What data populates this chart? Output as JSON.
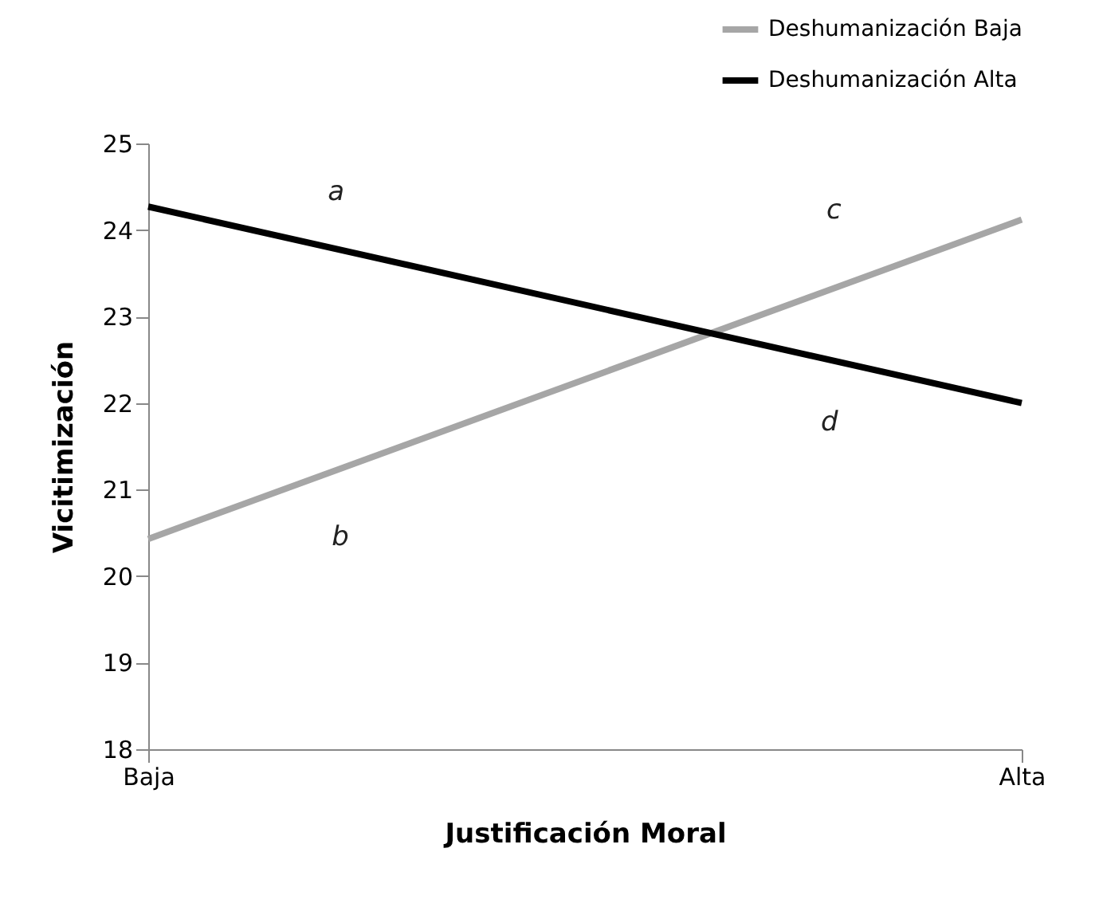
{
  "chart_data": {
    "type": "line",
    "xlabel": "Justificación Moral",
    "ylabel": "Vicitimización",
    "categories": [
      "Baja",
      "Alta"
    ],
    "series": [
      {
        "name": "Deshumanización Baja",
        "color": "#a6a6a6",
        "values": [
          20.43,
          24.12
        ]
      },
      {
        "name": "Deshumanización Alta",
        "color": "#000000",
        "values": [
          24.27,
          22.0
        ]
      }
    ],
    "ylim": [
      18,
      25
    ],
    "yticks": [
      18,
      19,
      20,
      21,
      22,
      23,
      24,
      25
    ],
    "annotations": [
      "a",
      "b",
      "c",
      "d"
    ],
    "grid": false,
    "legend": "top right",
    "marker": "none",
    "line_style": "solid"
  }
}
